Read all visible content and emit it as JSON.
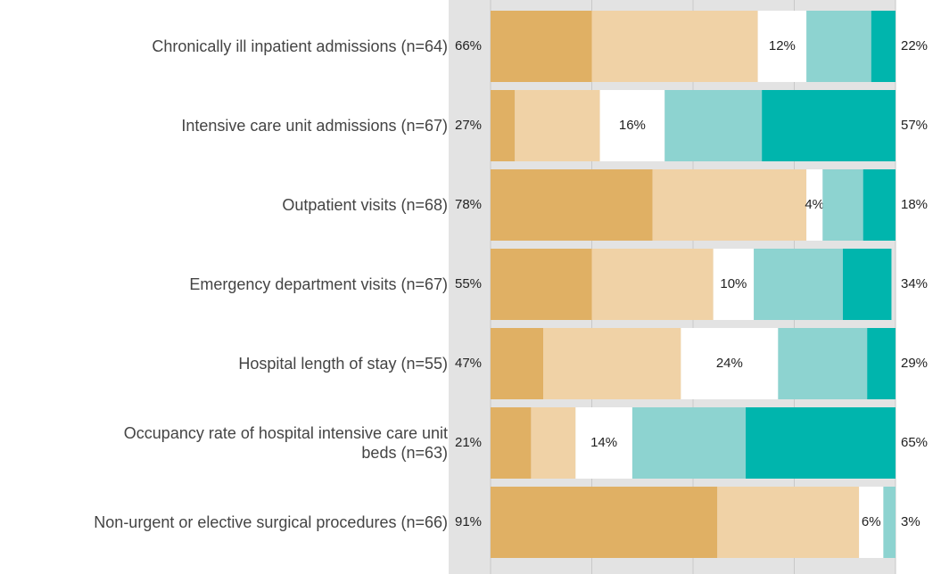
{
  "chart_data": {
    "type": "diverging_stacked_bar",
    "categories": [
      "Chronically ill inpatient admissions (n=64)",
      "Intensive care unit admissions (n=67)",
      "Outpatient visits (n=68)",
      "Emergency department visits (n=67)",
      "Hospital length of stay (n=55)",
      "Occupancy rate of hospital intensive care unit\nbeds (n=63)",
      "Non-urgent or elective surgical procedures (n=66)"
    ],
    "series": [
      {
        "color": "#e0b064",
        "values": [
          25,
          6,
          40,
          25,
          13,
          10,
          56
        ]
      },
      {
        "color": "#f0d2a6",
        "values": [
          41,
          21,
          38,
          30,
          34,
          11,
          35
        ]
      },
      {
        "color": "#ffffff",
        "values": [
          12,
          16,
          4,
          10,
          24,
          14,
          6
        ],
        "value_labels": [
          "12%",
          "16%",
          "4%",
          "10%",
          "24%",
          "14%",
          "6%"
        ]
      },
      {
        "color": "#8dd3d0",
        "values": [
          16,
          24,
          10,
          22,
          22,
          28,
          3
        ]
      },
      {
        "color": "#00b5ad",
        "values": [
          6,
          33,
          8,
          12,
          7,
          37,
          0
        ]
      }
    ],
    "left_totals": {
      "values": [
        66,
        27,
        78,
        55,
        47,
        21,
        91
      ],
      "value_labels": [
        "66%",
        "27%",
        "78%",
        "55%",
        "47%",
        "21%",
        "91%"
      ]
    },
    "right_totals": {
      "values": [
        22,
        57,
        18,
        34,
        29,
        65,
        3
      ],
      "value_labels": [
        "22%",
        "57%",
        "18%",
        "34%",
        "29%",
        "65%",
        "3%"
      ]
    },
    "xlim": [
      0,
      100
    ],
    "xticks": [
      0,
      25,
      50,
      75,
      100
    ],
    "grid": true
  }
}
